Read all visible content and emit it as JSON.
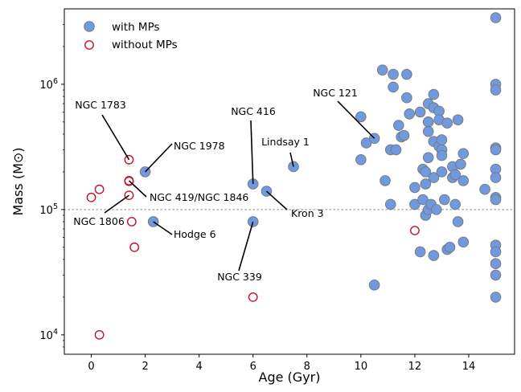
{
  "chart_data": {
    "type": "scatter",
    "xlabel": "Age (Gyr)",
    "ylabel": "Mass (M⊙)",
    "xlim": [
      -1,
      15.7
    ],
    "ylim": [
      7000,
      4000000
    ],
    "yscale": "log",
    "x_ticks": [
      0,
      2,
      4,
      6,
      8,
      10,
      12,
      14
    ],
    "x_tick_labels": [
      "0",
      "2",
      "4",
      "6",
      "8",
      "10",
      "12",
      "14"
    ],
    "y_ticks": [
      10000,
      100000,
      1000000
    ],
    "y_tick_labels": [
      {
        "base": "10",
        "exp": "4"
      },
      {
        "base": "10",
        "exp": "5"
      },
      {
        "base": "10",
        "exp": "6"
      }
    ],
    "reference_line": {
      "y": 100000,
      "style": "dotted",
      "color": "#b0b0b0"
    },
    "legend": {
      "position": "top-left"
    },
    "colors": {
      "with_fill": "#6f9ae0",
      "with_edge": "#7a7a7a",
      "without_edge": "#c8102e"
    },
    "series": [
      {
        "name": "with MPs",
        "marker": "filled-circle",
        "points": [
          [
            2.0,
            200000
          ],
          [
            2.3,
            80000
          ],
          [
            6.0,
            160000
          ],
          [
            6.0,
            80000
          ],
          [
            6.5,
            140000
          ],
          [
            7.5,
            220000
          ],
          [
            10.0,
            550000
          ],
          [
            10.0,
            250000
          ],
          [
            10.2,
            340000
          ],
          [
            10.5,
            370000
          ],
          [
            10.5,
            25000
          ],
          [
            10.8,
            1300000
          ],
          [
            10.9,
            170000
          ],
          [
            11.1,
            300000
          ],
          [
            11.1,
            110000
          ],
          [
            11.2,
            1200000
          ],
          [
            11.2,
            950000
          ],
          [
            11.3,
            300000
          ],
          [
            11.4,
            470000
          ],
          [
            11.5,
            380000
          ],
          [
            11.6,
            390000
          ],
          [
            11.7,
            1200000
          ],
          [
            11.7,
            780000
          ],
          [
            11.8,
            580000
          ],
          [
            12.0,
            150000
          ],
          [
            12.0,
            110000
          ],
          [
            12.2,
            600000
          ],
          [
            12.2,
            46000
          ],
          [
            12.3,
            210000
          ],
          [
            12.3,
            120000
          ],
          [
            12.4,
            200000
          ],
          [
            12.4,
            160000
          ],
          [
            12.4,
            90000
          ],
          [
            12.5,
            700000
          ],
          [
            12.5,
            500000
          ],
          [
            12.5,
            420000
          ],
          [
            12.5,
            260000
          ],
          [
            12.5,
            100000
          ],
          [
            12.6,
            110000
          ],
          [
            12.7,
            830000
          ],
          [
            12.7,
            650000
          ],
          [
            12.7,
            350000
          ],
          [
            12.7,
            180000
          ],
          [
            12.7,
            43000
          ],
          [
            12.8,
            100000
          ],
          [
            12.9,
            610000
          ],
          [
            12.9,
            520000
          ],
          [
            12.9,
            320000
          ],
          [
            13.0,
            300000
          ],
          [
            13.0,
            270000
          ],
          [
            13.0,
            360000
          ],
          [
            13.0,
            200000
          ],
          [
            13.1,
            120000
          ],
          [
            13.2,
            490000
          ],
          [
            13.2,
            48000
          ],
          [
            13.3,
            50000
          ],
          [
            13.4,
            220000
          ],
          [
            13.4,
            180000
          ],
          [
            13.5,
            110000
          ],
          [
            13.5,
            190000
          ],
          [
            13.6,
            520000
          ],
          [
            13.6,
            80000
          ],
          [
            13.7,
            230000
          ],
          [
            13.8,
            280000
          ],
          [
            13.8,
            170000
          ],
          [
            13.8,
            55000
          ],
          [
            14.6,
            145000
          ],
          [
            15.0,
            3400000
          ],
          [
            15.0,
            1000000
          ],
          [
            15.0,
            900000
          ],
          [
            15.0,
            310000
          ],
          [
            15.0,
            300000
          ],
          [
            15.0,
            210000
          ],
          [
            15.0,
            180000
          ],
          [
            15.0,
            125000
          ],
          [
            15.0,
            120000
          ],
          [
            15.0,
            52000
          ],
          [
            15.0,
            46000
          ],
          [
            15.0,
            37000
          ],
          [
            15.0,
            30000
          ],
          [
            15.0,
            20000
          ]
        ]
      },
      {
        "name": "without MPs",
        "marker": "open-circle",
        "points": [
          [
            0.0,
            125000
          ],
          [
            0.3,
            145000
          ],
          [
            0.3,
            10000
          ],
          [
            1.4,
            250000
          ],
          [
            1.4,
            170000
          ],
          [
            1.4,
            168000
          ],
          [
            1.4,
            130000
          ],
          [
            1.5,
            80000
          ],
          [
            1.6,
            50000
          ],
          [
            6.0,
            20000
          ],
          [
            12.0,
            68000
          ]
        ]
      }
    ],
    "annotations": [
      {
        "text": "NGC 1783",
        "point": [
          1.4,
          250000
        ]
      },
      {
        "text": "NGC 1978",
        "point": [
          2.0,
          200000
        ]
      },
      {
        "text": "NGC 419/NGC 1846",
        "point": [
          1.4,
          170000
        ]
      },
      {
        "text": "NGC 1806",
        "point": [
          1.4,
          130000
        ]
      },
      {
        "text": "Hodge 6",
        "point": [
          2.3,
          80000
        ]
      },
      {
        "text": "NGC 416",
        "point": [
          6.0,
          160000
        ]
      },
      {
        "text": "Lindsay 1",
        "point": [
          7.5,
          220000
        ]
      },
      {
        "text": "Kron 3",
        "point": [
          6.5,
          140000
        ]
      },
      {
        "text": "NGC 339",
        "point": [
          6.0,
          80000
        ]
      },
      {
        "text": "NGC 121",
        "point": [
          10.5,
          370000
        ]
      }
    ]
  }
}
